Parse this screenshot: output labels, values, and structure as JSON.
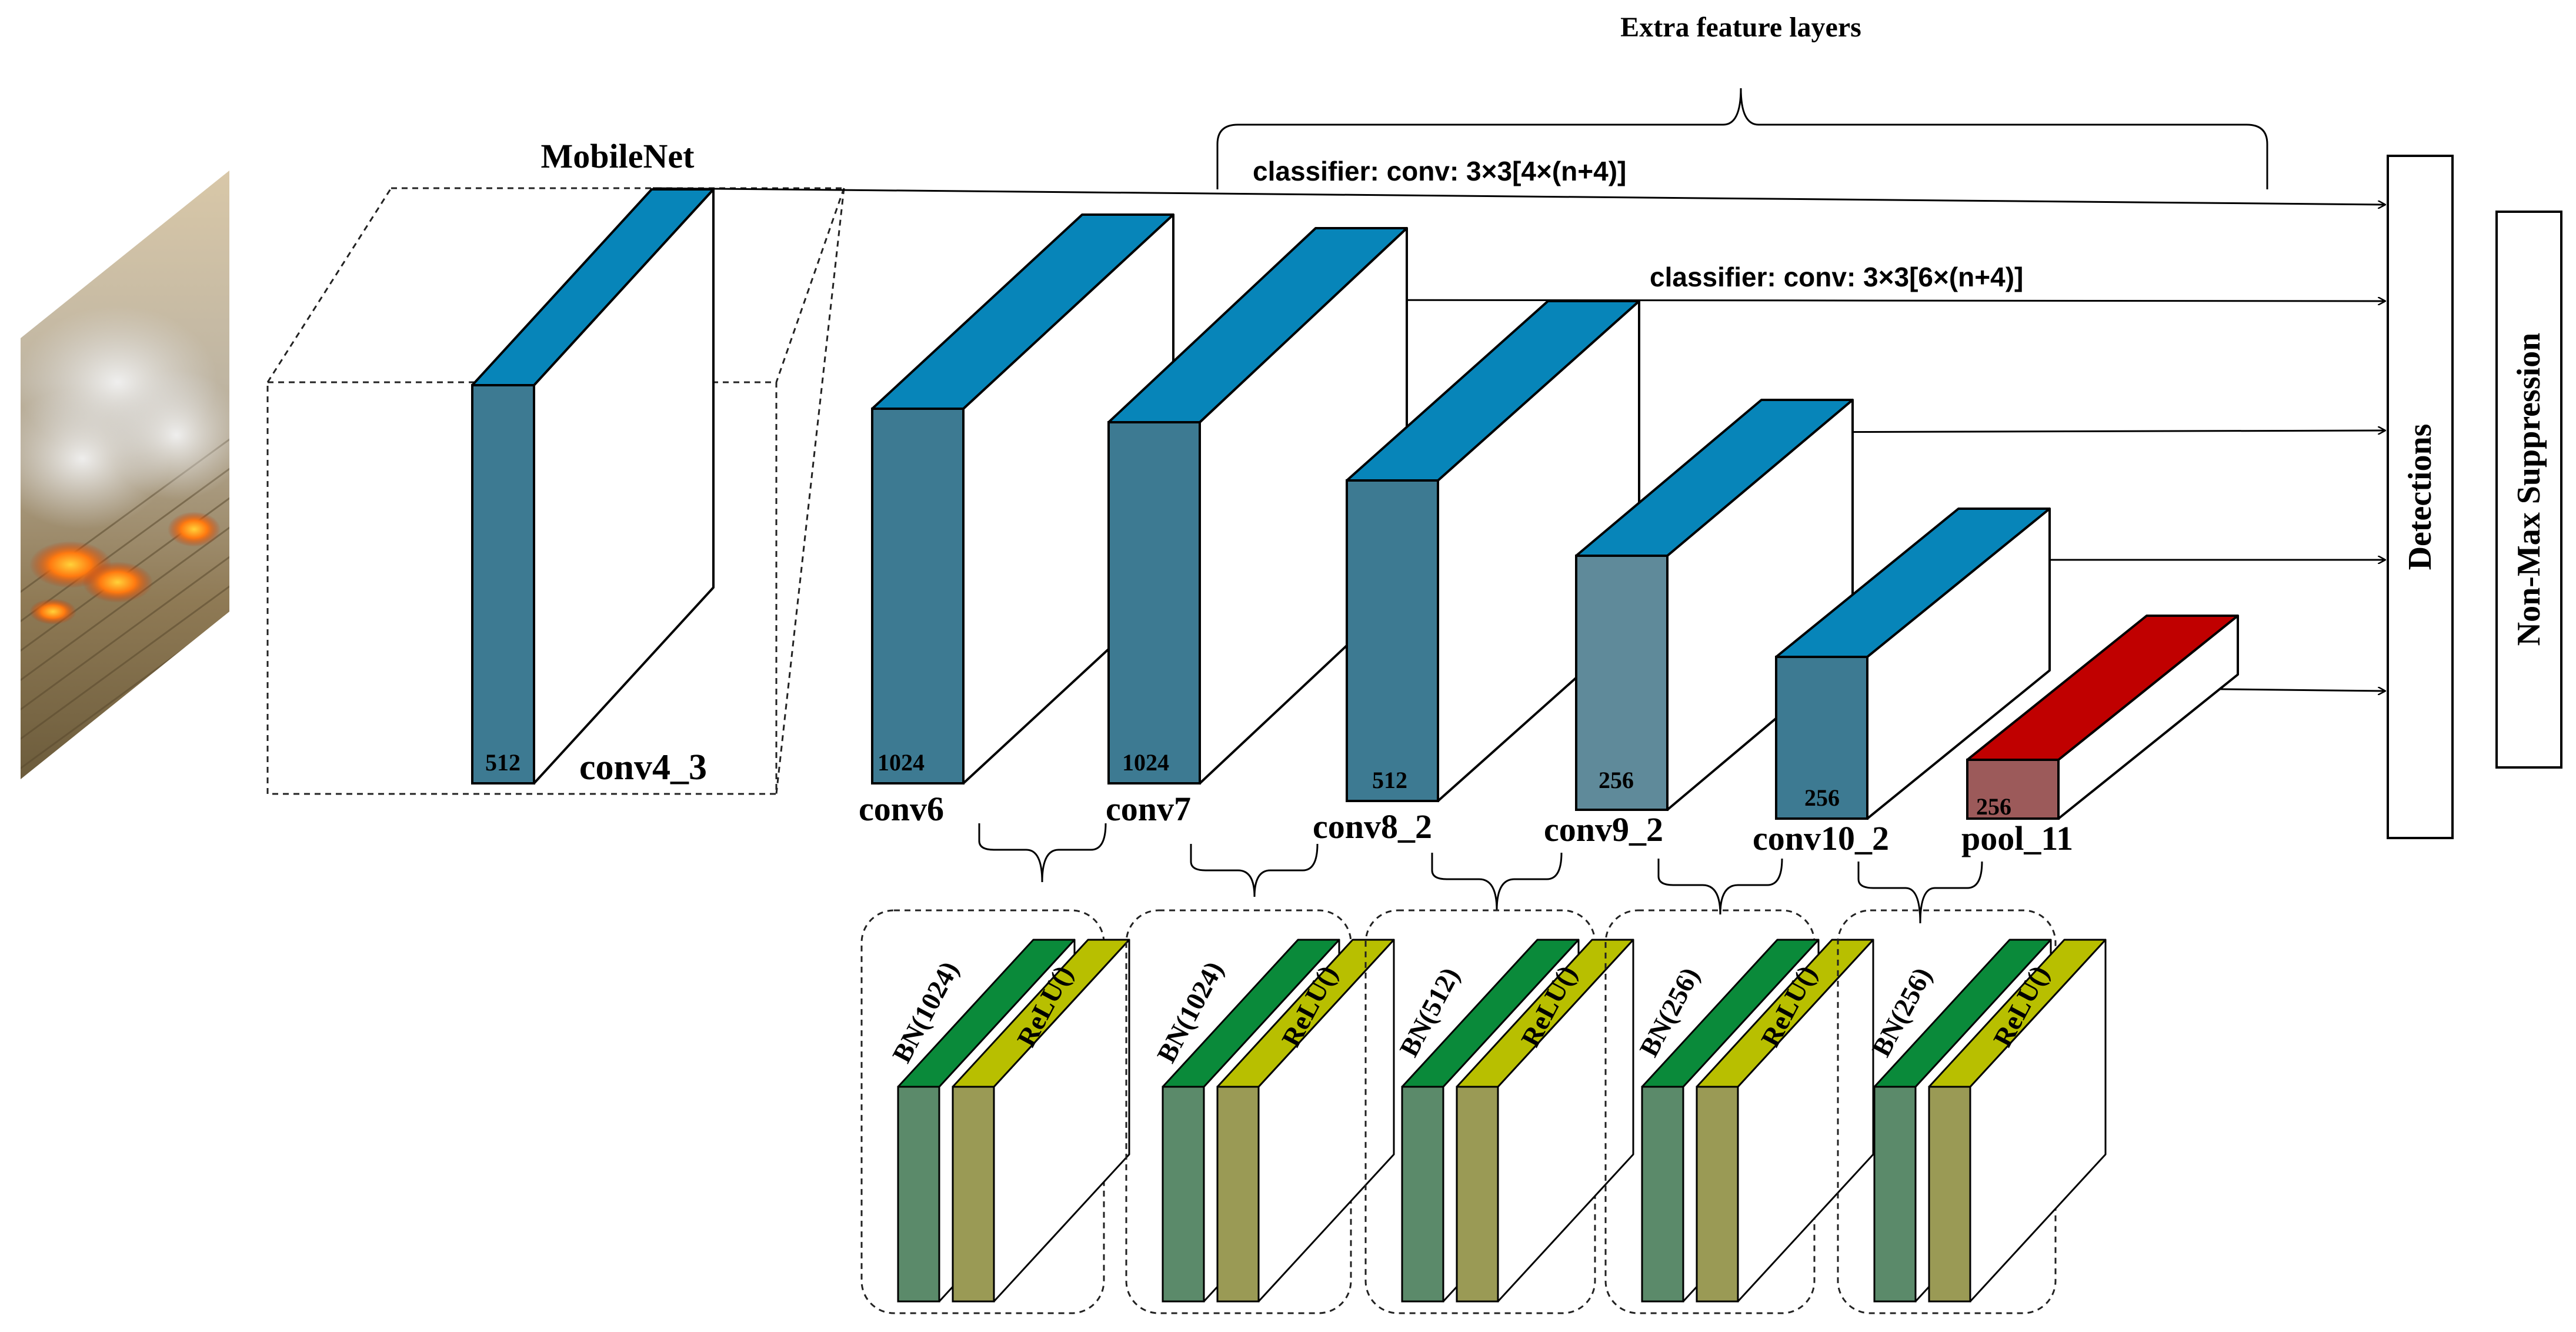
{
  "colors": {
    "layer_top": "#0785b9",
    "layer_front": "#3d7a92",
    "layer_front_light": "#5f8a9a",
    "pool_top": "#c00000",
    "pool_front": "#9c5a5a",
    "bn_top": "#0a8a3a",
    "bn_front": "#5b8a6a",
    "relu_top": "#b8bf00",
    "relu_front": "#9a9a55"
  },
  "input_image": {
    "name": "wildfire-aerial-photo"
  },
  "backbone": {
    "title": "MobileNet",
    "layer_name": "conv4_3",
    "channels": "512"
  },
  "extra": {
    "title": "Extra feature layers"
  },
  "classifiers": [
    {
      "label": "classifier: conv: 3×3[4×(n+4)]"
    },
    {
      "label": "classifier: conv: 3×3[6×(n+4)]"
    }
  ],
  "layers": [
    {
      "name": "conv6",
      "channels": "1024"
    },
    {
      "name": "conv7",
      "channels": "1024"
    },
    {
      "name": "conv8_2",
      "channels": "512"
    },
    {
      "name": "conv9_2",
      "channels": "256"
    },
    {
      "name": "conv10_2",
      "channels": "256"
    },
    {
      "name": "pool_11",
      "channels": "256"
    }
  ],
  "blocks": [
    {
      "bn": "BN(1024)",
      "relu": "ReLU()"
    },
    {
      "bn": "BN(1024)",
      "relu": "ReLU()"
    },
    {
      "bn": "BN(512)",
      "relu": "ReLU()"
    },
    {
      "bn": "BN(256)",
      "relu": "ReLU()"
    },
    {
      "bn": "BN(256)",
      "relu": "ReLU()"
    }
  ],
  "outputs": {
    "detections": "Detections",
    "nms": "Non-Max Suppression"
  }
}
